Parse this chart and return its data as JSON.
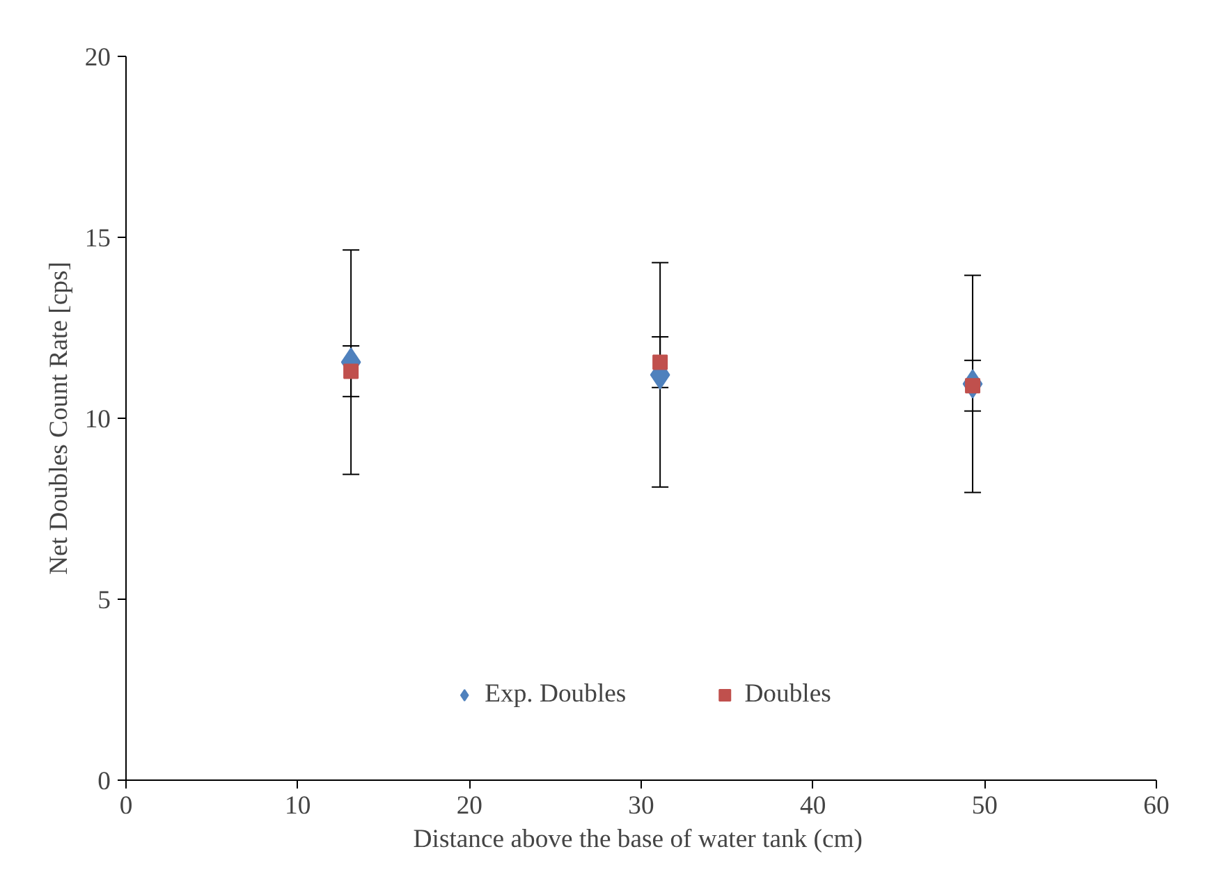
{
  "chart_data": {
    "type": "scatter",
    "xlabel": "Distance  above the base of water tank (cm)",
    "ylabel": "Net Doubles Count Rate [cps]",
    "xlim": [
      0,
      60
    ],
    "xticks": [
      0,
      10,
      20,
      30,
      40,
      50,
      60
    ],
    "ylim": [
      0,
      20
    ],
    "yticks": [
      0,
      5,
      10,
      15,
      20
    ],
    "grid": false,
    "legend": "bottom",
    "series": [
      {
        "name": "Exp. Doubles",
        "color": "#4f81bd",
        "marker": "diamond",
        "x": [
          13.1,
          31.1,
          49.3
        ],
        "values": [
          11.55,
          11.2,
          10.95
        ],
        "errors": [
          3.1,
          3.1,
          3.0
        ]
      },
      {
        "name": "Doubles",
        "color": "#c0504d",
        "marker": "square",
        "x": [
          13.1,
          31.1,
          49.3
        ],
        "values": [
          11.3,
          11.55,
          10.9
        ],
        "errors": [
          0.7,
          0.7,
          0.7
        ]
      }
    ]
  }
}
